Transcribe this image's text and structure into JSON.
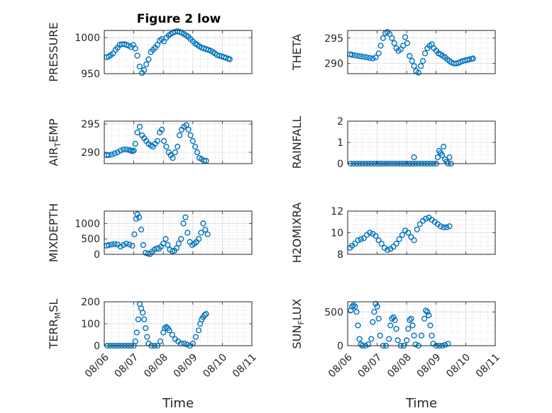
{
  "figure": {
    "title": "Figure 2 low",
    "marker_color": "#0072BD"
  },
  "x_ticks": [
    "08/06",
    "08/07",
    "08/08",
    "08/09",
    "08/10",
    "08/11"
  ],
  "x_label": "Time",
  "chart_data": [
    {
      "type": "scatter",
      "title": "Figure 2 low",
      "ylabel": "PRESSURE",
      "xlim": [
        0,
        5
      ],
      "ylim": [
        950,
        1010
      ],
      "yticks": [
        950,
        1000
      ],
      "grid": true,
      "x": [
        0.08,
        0.15,
        0.22,
        0.3,
        0.38,
        0.45,
        0.52,
        0.6,
        0.68,
        0.75,
        0.82,
        0.9,
        0.98,
        1.05,
        1.12,
        1.2,
        1.28,
        1.35,
        1.42,
        1.5,
        1.58,
        1.65,
        1.72,
        1.8,
        1.88,
        1.95,
        2.02,
        2.1,
        2.18,
        2.25,
        2.32,
        2.4,
        2.48,
        2.55,
        2.62,
        2.7,
        2.78,
        2.85,
        2.92,
        3.0,
        3.08,
        3.15,
        3.22,
        3.3,
        3.38,
        3.45,
        3.52,
        3.6,
        3.68,
        3.75,
        3.82,
        3.9,
        3.98,
        4.05,
        4.12,
        4.2,
        4.25
      ],
      "y": [
        973,
        974,
        976,
        978,
        983,
        986,
        990,
        991,
        991,
        990,
        989,
        987,
        990,
        985,
        975,
        960,
        951,
        955,
        963,
        970,
        980,
        983,
        986,
        990,
        996,
        998,
        995,
        1000,
        1003,
        1005,
        1007,
        1008,
        1009,
        1008,
        1007,
        1005,
        1003,
        1001,
        998,
        995,
        992,
        990,
        988,
        986,
        985,
        984,
        983,
        982,
        980,
        978,
        976,
        975,
        974,
        973,
        972,
        971,
        970
      ]
    },
    {
      "type": "scatter",
      "ylabel": "THETA",
      "xlim": [
        0,
        5
      ],
      "ylim": [
        288,
        296.5
      ],
      "yticks": [
        290,
        295
      ],
      "grid": true,
      "x": [
        0.08,
        0.15,
        0.25,
        0.35,
        0.45,
        0.55,
        0.65,
        0.75,
        0.85,
        0.95,
        1.05,
        1.12,
        1.2,
        1.28,
        1.35,
        1.42,
        1.5,
        1.58,
        1.65,
        1.72,
        1.8,
        1.88,
        1.95,
        2.02,
        2.1,
        2.18,
        2.25,
        2.32,
        2.4,
        2.48,
        2.55,
        2.62,
        2.7,
        2.78,
        2.85,
        2.92,
        3.0,
        3.08,
        3.15,
        3.22,
        3.3,
        3.38,
        3.45,
        3.52,
        3.6,
        3.68,
        3.75,
        3.82,
        3.9,
        3.98,
        4.05,
        4.12,
        4.2,
        4.25
      ],
      "y": [
        291.8,
        291.7,
        291.6,
        291.5,
        291.4,
        291.3,
        291.2,
        291.1,
        291.0,
        291.2,
        292.0,
        293.5,
        295.0,
        296.0,
        296.2,
        295.8,
        295.0,
        294.0,
        293.0,
        292.5,
        292.8,
        293.5,
        295.2,
        294.0,
        291.5,
        290.5,
        289.5,
        288.5,
        288.2,
        289.5,
        290.5,
        292.0,
        293.0,
        293.5,
        293.8,
        293.0,
        292.5,
        292.0,
        291.8,
        291.5,
        291.2,
        290.8,
        290.5,
        290.2,
        290.0,
        290.0,
        290.1,
        290.3,
        290.5,
        290.6,
        290.7,
        290.8,
        290.9,
        291.0
      ]
    },
    {
      "type": "scatter",
      "ylabel": "AIR_TEMP",
      "xlim": [
        0,
        5
      ],
      "ylim": [
        288,
        295.5
      ],
      "yticks": [
        290,
        295
      ],
      "grid": true,
      "x": [
        0.08,
        0.15,
        0.25,
        0.35,
        0.45,
        0.55,
        0.65,
        0.75,
        0.85,
        0.9,
        0.95,
        1.0,
        1.05,
        1.12,
        1.2,
        1.28,
        1.35,
        1.42,
        1.5,
        1.58,
        1.65,
        1.72,
        1.8,
        1.88,
        1.95,
        2.02,
        2.1,
        2.18,
        2.25,
        2.32,
        2.4,
        2.48,
        2.55,
        2.62,
        2.7,
        2.78,
        2.85,
        2.92,
        3.0,
        3.08,
        3.15,
        3.22,
        3.3,
        3.38,
        3.45
      ],
      "y": [
        289.5,
        289.5,
        289.6,
        289.8,
        290.0,
        290.3,
        290.5,
        290.5,
        290.4,
        290.3,
        290.2,
        290.3,
        291.5,
        293.5,
        294.5,
        293.0,
        292.5,
        292.0,
        291.5,
        291.2,
        291.0,
        291.5,
        292.0,
        293.5,
        294.0,
        292.0,
        291.0,
        290.0,
        289.5,
        289.0,
        290.0,
        291.0,
        293.0,
        294.0,
        294.5,
        294.8,
        294.0,
        293.0,
        292.0,
        291.0,
        290.0,
        289.0,
        288.8,
        288.5,
        288.5
      ]
    },
    {
      "type": "scatter",
      "ylabel": "RAINFALL",
      "xlim": [
        0,
        5
      ],
      "ylim": [
        0,
        2
      ],
      "yticks": [
        0,
        1,
        2
      ],
      "grid": true,
      "x": [
        0.1,
        0.2,
        0.3,
        0.4,
        0.5,
        0.6,
        0.7,
        0.8,
        0.9,
        1.0,
        1.1,
        1.2,
        1.3,
        1.4,
        1.5,
        1.6,
        1.7,
        1.8,
        1.9,
        2.0,
        2.1,
        2.2,
        2.3,
        2.4,
        2.5,
        2.6,
        2.7,
        2.8,
        2.9,
        3.0,
        3.05,
        3.1,
        3.15,
        3.2,
        3.25,
        3.3,
        3.35,
        3.4,
        3.45,
        3.5,
        2.25,
        2.2
      ],
      "y": [
        0,
        0,
        0,
        0,
        0,
        0,
        0,
        0,
        0,
        0,
        0,
        0,
        0,
        0,
        0,
        0,
        0,
        0,
        0,
        0,
        0,
        0,
        0,
        0,
        0,
        0,
        0,
        0,
        0,
        0,
        0.3,
        0.6,
        0.5,
        0.4,
        0.8,
        0.2,
        0.1,
        0,
        0.3,
        0,
        0.3,
        0
      ]
    },
    {
      "type": "scatter",
      "ylabel": "MIXDEPTH",
      "xlim": [
        0,
        5
      ],
      "ylim": [
        0,
        1400
      ],
      "yticks": [
        0,
        500,
        1000
      ],
      "grid": true,
      "x": [
        0.08,
        0.15,
        0.25,
        0.35,
        0.45,
        0.55,
        0.65,
        0.75,
        0.85,
        0.95,
        1.02,
        1.08,
        1.12,
        1.18,
        1.25,
        1.32,
        1.4,
        1.48,
        1.55,
        1.62,
        1.7,
        1.78,
        1.85,
        1.92,
        2.0,
        2.08,
        2.15,
        2.22,
        2.3,
        2.38,
        2.45,
        2.52,
        2.6,
        2.68,
        2.75,
        2.82,
        2.9,
        2.98,
        3.05,
        3.12,
        3.2,
        3.28,
        3.35,
        3.42,
        3.5
      ],
      "y": [
        280,
        300,
        320,
        330,
        320,
        250,
        300,
        350,
        320,
        280,
        650,
        1150,
        1300,
        1200,
        800,
        300,
        50,
        20,
        10,
        80,
        150,
        200,
        180,
        250,
        350,
        500,
        300,
        150,
        100,
        120,
        200,
        350,
        500,
        1000,
        1200,
        700,
        400,
        300,
        350,
        400,
        500,
        700,
        1000,
        800,
        650
      ]
    },
    {
      "type": "scatter",
      "ylabel": "H2OMIXRA",
      "xlim": [
        0,
        5
      ],
      "ylim": [
        8,
        12
      ],
      "yticks": [
        8,
        10,
        12
      ],
      "grid": true,
      "x": [
        0.08,
        0.15,
        0.25,
        0.35,
        0.45,
        0.55,
        0.65,
        0.75,
        0.85,
        0.95,
        1.05,
        1.15,
        1.25,
        1.35,
        1.45,
        1.55,
        1.65,
        1.75,
        1.85,
        1.95,
        2.05,
        2.15,
        2.25,
        2.35,
        2.45,
        2.55,
        2.65,
        2.75,
        2.85,
        2.95,
        3.05,
        3.15,
        3.25,
        3.35,
        3.45
      ],
      "y": [
        8.6,
        8.8,
        9.0,
        9.3,
        9.4,
        9.5,
        9.8,
        10.0,
        9.9,
        9.7,
        9.3,
        9.0,
        8.6,
        8.4,
        8.5,
        8.7,
        9.0,
        9.4,
        9.8,
        10.2,
        10.0,
        9.6,
        9.3,
        10.3,
        10.8,
        11.1,
        11.3,
        11.4,
        11.2,
        11.0,
        10.8,
        10.6,
        10.5,
        10.5,
        10.6
      ]
    },
    {
      "type": "scatter",
      "ylabel": "TERR_MSL",
      "xlim": [
        0,
        5
      ],
      "ylim": [
        0,
        200
      ],
      "yticks": [
        0,
        100,
        200
      ],
      "grid": true,
      "x": [
        0.1,
        0.2,
        0.3,
        0.4,
        0.5,
        0.6,
        0.7,
        0.8,
        0.9,
        1.0,
        1.05,
        1.1,
        1.15,
        1.2,
        1.25,
        1.3,
        1.35,
        1.4,
        1.45,
        1.5,
        1.6,
        1.7,
        1.8,
        1.9,
        2.0,
        2.05,
        2.1,
        2.15,
        2.2,
        2.3,
        2.4,
        2.5,
        2.6,
        2.7,
        2.8,
        2.9,
        3.0,
        3.1,
        3.2,
        3.25,
        3.3,
        3.35,
        3.4,
        3.45
      ],
      "y": [
        0,
        0,
        0,
        0,
        0,
        0,
        0,
        0,
        0,
        0,
        20,
        60,
        120,
        190,
        170,
        150,
        120,
        80,
        40,
        10,
        0,
        0,
        0,
        20,
        60,
        80,
        85,
        80,
        70,
        50,
        30,
        20,
        10,
        10,
        5,
        0,
        10,
        40,
        70,
        100,
        120,
        130,
        140,
        145
      ]
    },
    {
      "type": "scatter",
      "ylabel": "SUN_FLUX",
      "xlim": [
        0,
        5
      ],
      "ylim": [
        0,
        650
      ],
      "yticks": [
        0,
        500
      ],
      "grid": true,
      "x": [
        0.1,
        0.15,
        0.2,
        0.25,
        0.3,
        0.35,
        0.4,
        0.45,
        0.5,
        0.6,
        0.7,
        0.8,
        0.85,
        0.9,
        0.95,
        1.0,
        1.05,
        1.1,
        1.2,
        1.3,
        1.4,
        1.45,
        1.5,
        1.55,
        1.6,
        1.65,
        1.7,
        1.8,
        1.9,
        2.0,
        2.05,
        2.1,
        2.15,
        2.2,
        2.25,
        2.3,
        2.4,
        2.5,
        2.6,
        2.65,
        2.7,
        2.75,
        2.8,
        2.85,
        2.9,
        3.0,
        3.1,
        3.2,
        3.3,
        3.4
      ],
      "y": [
        520,
        580,
        600,
        580,
        500,
        300,
        100,
        20,
        0,
        0,
        20,
        100,
        350,
        500,
        620,
        580,
        400,
        150,
        0,
        0,
        100,
        300,
        400,
        420,
        380,
        250,
        80,
        0,
        0,
        80,
        250,
        380,
        400,
        300,
        150,
        20,
        0,
        150,
        400,
        520,
        500,
        450,
        300,
        150,
        30,
        0,
        0,
        0,
        10,
        30
      ]
    }
  ]
}
